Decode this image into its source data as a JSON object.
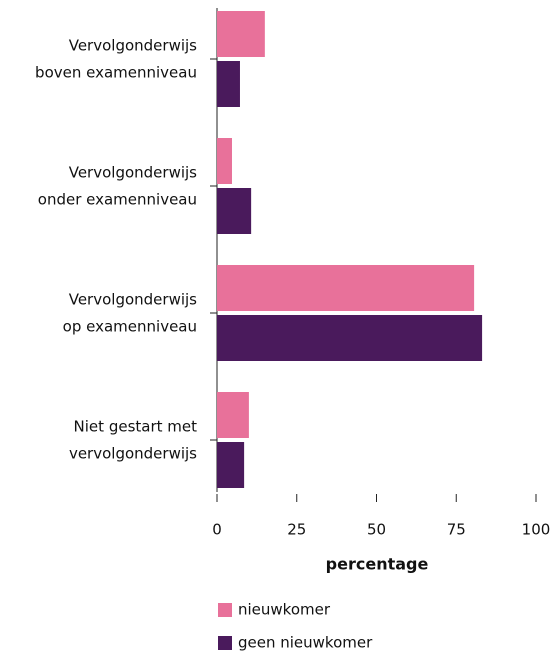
{
  "chart_data": {
    "type": "hbar",
    "categories": [
      [
        "Vervolgonderwijs",
        "boven examenniveau"
      ],
      [
        "Vervolgonderwijs",
        "onder examenniveau"
      ],
      [
        "Vervolgonderwijs",
        "op examenniveau"
      ],
      [
        "Niet gestart met",
        "vervolgonderwijs"
      ]
    ],
    "series": [
      {
        "name": "nieuwkomer",
        "color": "#e8719a",
        "values": [
          15.0,
          4.7,
          80.6,
          10.0
        ]
      },
      {
        "name": "geen nieuwkomer",
        "color": "#4a1a5c",
        "values": [
          7.2,
          10.7,
          83.1,
          8.5
        ]
      }
    ],
    "xlim": [
      0,
      100
    ],
    "xticks": [
      0,
      25,
      50,
      75,
      100
    ],
    "xlabel": "percentage"
  }
}
